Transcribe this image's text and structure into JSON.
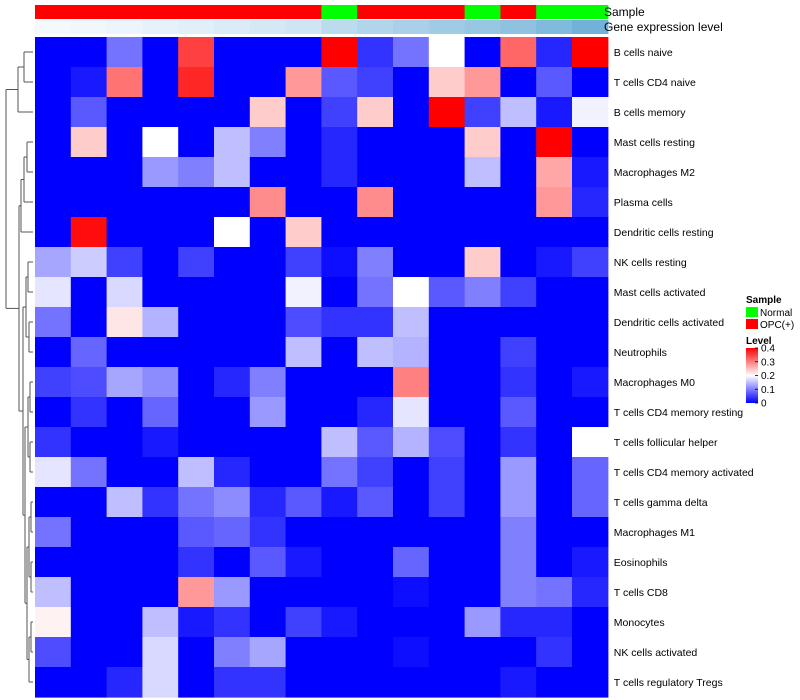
{
  "chart_data": {
    "type": "heatmap",
    "title": "",
    "annotation_labels": {
      "sample": "Sample",
      "expression": "Gene expression level"
    },
    "sample_groups": [
      "OPC(+)",
      "OPC(+)",
      "OPC(+)",
      "OPC(+)",
      "OPC(+)",
      "OPC(+)",
      "OPC(+)",
      "OPC(+)",
      "Normal",
      "OPC(+)",
      "OPC(+)",
      "OPC(+)",
      "Normal",
      "OPC(+)",
      "Normal",
      "Normal"
    ],
    "gene_expression_level": [
      0.02,
      0.05,
      0.08,
      0.12,
      0.16,
      0.2,
      0.24,
      0.28,
      0.42,
      0.5,
      0.56,
      0.62,
      0.68,
      0.74,
      0.85,
      0.95
    ],
    "rows": [
      "B cells naive",
      "T cells CD4 naive",
      "B cells memory",
      "Mast cells resting",
      "Macrophages M2",
      "Plasma cells",
      "Dendritic cells resting",
      "NK cells resting",
      "Mast cells activated",
      "Dendritic cells activated",
      "Neutrophils",
      "Macrophages M0",
      "T cells CD4 memory resting",
      "T cells follicular helper",
      "T cells CD4 memory activated",
      "T cells gamma delta",
      "Macrophages M1",
      "Eosinophils",
      "T cells CD8",
      "Monocytes",
      "NK cells activated",
      "T cells regulatory  Tregs"
    ],
    "values": [
      [
        0,
        0,
        0.09,
        0,
        0.35,
        0,
        0,
        0,
        0.4,
        0.04,
        0.09,
        0.2,
        0,
        0.32,
        0.03,
        0.4
      ],
      [
        0,
        0.02,
        0.31,
        0,
        0.37,
        0,
        0,
        0.28,
        0.07,
        0.05,
        0,
        0.24,
        0.28,
        0,
        0.07,
        0
      ],
      [
        0,
        0.07,
        0,
        0,
        0,
        0,
        0.24,
        0,
        0.05,
        0.24,
        0,
        0.4,
        0.05,
        0.15,
        0.02,
        0.19
      ],
      [
        0,
        0.24,
        0,
        0.2,
        0,
        0.15,
        0.1,
        0,
        0.03,
        0,
        0,
        0,
        0.24,
        0,
        0.41,
        0
      ],
      [
        0,
        0,
        0,
        0.12,
        0.1,
        0.15,
        0,
        0,
        0.03,
        0,
        0,
        0,
        0.15,
        0,
        0.27,
        0.02
      ],
      [
        0,
        0,
        0,
        0,
        0,
        0,
        0.29,
        0,
        0,
        0.29,
        0,
        0,
        0,
        0,
        0.28,
        0.03
      ],
      [
        0,
        0.39,
        0,
        0,
        0,
        0.2,
        0,
        0.24,
        0,
        0,
        0,
        0,
        0,
        0,
        0,
        0
      ],
      [
        0.13,
        0.16,
        0.05,
        0,
        0.05,
        0,
        0,
        0.05,
        0.01,
        0.1,
        0,
        0,
        0.24,
        0,
        0.02,
        0.05
      ],
      [
        0.18,
        0,
        0.17,
        0,
        0,
        0,
        0,
        0.19,
        0,
        0.09,
        0.2,
        0.07,
        0.1,
        0.05,
        0,
        0
      ],
      [
        0.09,
        0,
        0.22,
        0.14,
        0,
        0,
        0,
        0.06,
        0.04,
        0.04,
        0.15,
        0,
        0,
        0,
        0,
        0
      ],
      [
        0,
        0.08,
        0,
        0,
        0,
        0,
        0,
        0.15,
        0,
        0.15,
        0.14,
        0,
        0,
        0.05,
        0,
        0
      ],
      [
        0.05,
        0.06,
        0.13,
        0.11,
        0,
        0.03,
        0.1,
        0,
        0,
        0,
        0.3,
        0,
        0,
        0.04,
        0,
        0.02
      ],
      [
        0,
        0.04,
        0,
        0.08,
        0,
        0,
        0.12,
        0,
        0,
        0.03,
        0.18,
        0,
        0,
        0.07,
        0,
        0
      ],
      [
        0.04,
        0,
        0,
        0.02,
        0,
        0,
        0,
        0,
        0.15,
        0.07,
        0.14,
        0.06,
        0,
        0.04,
        0,
        0.2
      ],
      [
        0.18,
        0.09,
        0,
        0,
        0.15,
        0.03,
        0,
        0,
        0.09,
        0.05,
        0,
        0.05,
        0,
        0.12,
        0,
        0.08
      ],
      [
        0,
        0,
        0.15,
        0.04,
        0.09,
        0.11,
        0.03,
        0.07,
        0.02,
        0.07,
        0,
        0.05,
        0,
        0.12,
        0,
        0.08
      ],
      [
        0.09,
        0,
        0,
        0,
        0.07,
        0.08,
        0.04,
        0,
        0,
        0,
        0,
        0,
        0,
        0.1,
        0,
        0
      ],
      [
        0,
        0,
        0,
        0,
        0.04,
        0,
        0.07,
        0.02,
        0,
        0,
        0.08,
        0,
        0,
        0.1,
        0,
        0.02
      ],
      [
        0.15,
        0,
        0,
        0,
        0.28,
        0.12,
        0,
        0,
        0,
        0,
        0.01,
        0,
        0,
        0.1,
        0.09,
        0.03
      ],
      [
        0.21,
        0,
        0,
        0.15,
        0.02,
        0.04,
        0,
        0.05,
        0.02,
        0,
        0,
        0,
        0.12,
        0.03,
        0.03,
        0
      ],
      [
        0.06,
        0,
        0,
        0.17,
        0,
        0.1,
        0.13,
        0,
        0,
        0,
        0.01,
        0,
        0,
        0,
        0.04,
        0
      ],
      [
        0,
        0,
        0.03,
        0.17,
        0,
        0.04,
        0.04,
        0,
        0,
        0,
        0,
        0,
        0,
        0.02,
        0,
        0
      ]
    ],
    "legend": {
      "sample_title": "Sample",
      "sample_entries": [
        {
          "label": "Normal",
          "color": "#00ff00"
        },
        {
          "label": "OPC(+)",
          "color": "#ff0000"
        }
      ],
      "level_title": "Level",
      "level_ticks": [
        0.4,
        0.3,
        0.2,
        0.1,
        0
      ],
      "level_range": [
        0,
        0.4
      ],
      "placement": "right"
    },
    "colors": {
      "low": "#0000ff",
      "mid": "#ffffff",
      "high": "#ff0000",
      "expr_low": "#f7fbff",
      "expr_high": "#6baed6",
      "normal": "#00ff00",
      "opc": "#ff0000"
    }
  }
}
